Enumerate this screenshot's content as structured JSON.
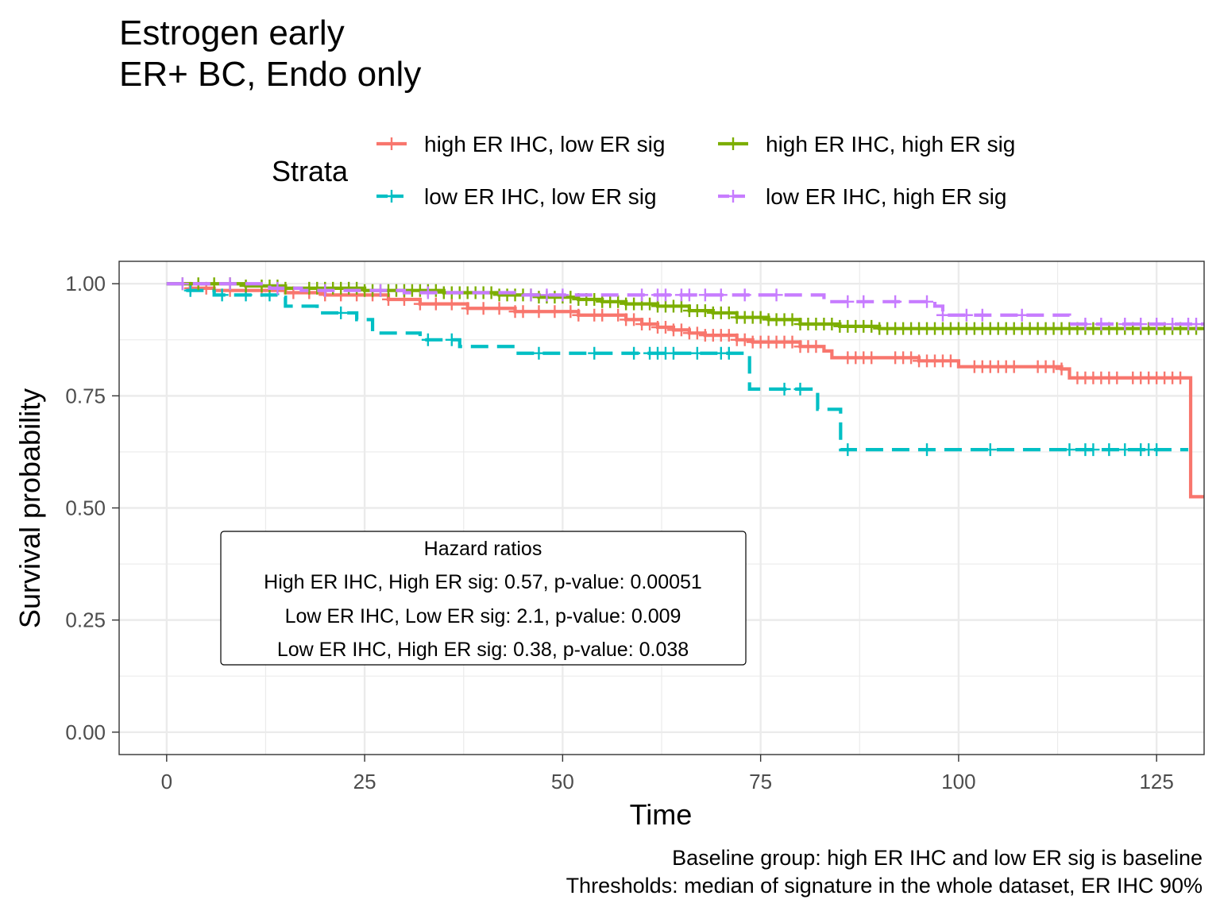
{
  "chart_data": {
    "type": "line",
    "title": "Estrogen early",
    "subtitle": "ER+ BC, Endo only",
    "xlabel": "Time",
    "ylabel": "Survival probability",
    "xlim": [
      -6,
      131
    ],
    "ylim": [
      -0.05,
      1.05
    ],
    "x_ticks": [
      0,
      25,
      50,
      75,
      100,
      125
    ],
    "x_tick_labels": [
      "0",
      "25",
      "50",
      "75",
      "100",
      "125"
    ],
    "y_ticks": [
      0,
      0.25,
      0.5,
      0.75,
      1.0
    ],
    "y_tick_labels": [
      "0.00",
      "0.25",
      "0.50",
      "0.75",
      "1.00"
    ],
    "grid": true,
    "legend": {
      "title": "Strata",
      "placement": "top"
    },
    "caption": [
      "Baseline group: high ER IHC and low ER sig is baseline",
      "Thresholds: median of signature in the whole dataset, ER IHC 90%"
    ],
    "annotation": {
      "title": "Hazard ratios",
      "lines": [
        "High ER IHC, High ER sig: 0.57, p-value: 0.00051",
        "Low ER IHC, Low ER sig: 2.1, p-value: 0.009",
        "Low ER IHC, High ER sig: 0.38, p-value: 0.038"
      ]
    },
    "series": [
      {
        "name": "high ER IHC, low ER sig",
        "color": "#F8766D",
        "dash": "solid",
        "steps": [
          [
            0,
            1.0
          ],
          [
            3,
            0.99
          ],
          [
            6,
            0.985
          ],
          [
            15,
            0.98
          ],
          [
            20,
            0.975
          ],
          [
            28,
            0.965
          ],
          [
            32,
            0.955
          ],
          [
            38,
            0.945
          ],
          [
            44,
            0.938
          ],
          [
            52,
            0.93
          ],
          [
            58,
            0.92
          ],
          [
            60,
            0.91
          ],
          [
            62,
            0.903
          ],
          [
            64,
            0.897
          ],
          [
            66,
            0.89
          ],
          [
            68,
            0.885
          ],
          [
            72,
            0.875
          ],
          [
            74,
            0.87
          ],
          [
            80,
            0.86
          ],
          [
            83,
            0.85
          ],
          [
            84,
            0.835
          ],
          [
            95,
            0.828
          ],
          [
            100,
            0.815
          ],
          [
            113,
            0.81
          ],
          [
            114,
            0.79
          ],
          [
            129,
            0.79
          ],
          [
            129.3,
            0.525
          ],
          [
            131,
            0.525
          ]
        ],
        "censor_x": [
          3,
          5,
          8,
          10,
          12,
          16,
          18,
          20,
          22,
          24,
          26,
          28,
          30,
          32,
          34,
          36,
          38,
          40,
          42,
          44,
          45,
          47,
          49,
          51,
          52,
          54,
          55,
          57,
          58,
          59,
          60,
          61,
          62,
          63,
          64,
          65,
          66,
          67,
          68,
          69,
          70,
          71,
          72,
          73,
          74,
          75,
          76,
          77,
          78,
          79,
          80,
          81,
          82,
          86,
          87,
          88,
          89,
          92,
          93,
          94,
          95,
          96,
          97,
          98,
          99,
          102,
          103,
          104,
          105,
          106,
          107,
          110,
          111,
          112,
          113,
          115,
          116,
          117,
          118,
          119,
          120,
          122,
          123,
          124,
          125,
          126,
          127,
          128
        ]
      },
      {
        "name": "low ER IHC, low ER sig",
        "color": "#00BFC4",
        "dash": "dashed",
        "steps": [
          [
            0,
            1.0
          ],
          [
            2,
            0.985
          ],
          [
            6,
            0.975
          ],
          [
            14,
            0.97
          ],
          [
            15,
            0.95
          ],
          [
            19,
            0.935
          ],
          [
            24,
            0.92
          ],
          [
            26,
            0.89
          ],
          [
            32,
            0.875
          ],
          [
            37,
            0.86
          ],
          [
            44,
            0.845
          ],
          [
            73.5,
            0.845
          ],
          [
            73.6,
            0.765
          ],
          [
            82,
            0.765
          ],
          [
            82.2,
            0.72
          ],
          [
            85,
            0.72
          ],
          [
            85.1,
            0.63
          ],
          [
            129,
            0.63
          ]
        ],
        "censor_x": [
          3,
          7,
          10,
          13,
          22,
          33,
          36,
          47,
          54,
          59,
          61,
          62,
          63,
          64,
          67,
          70,
          71,
          78,
          80,
          86,
          96,
          104,
          114,
          116,
          117,
          119,
          121,
          123,
          124,
          125
        ]
      },
      {
        "name": "high ER IHC, high ER sig",
        "color": "#7CAE00",
        "dash": "solid",
        "steps": [
          [
            0,
            1.0
          ],
          [
            10,
            0.995
          ],
          [
            15,
            0.99
          ],
          [
            25,
            0.985
          ],
          [
            35,
            0.98
          ],
          [
            42,
            0.975
          ],
          [
            47,
            0.97
          ],
          [
            52,
            0.965
          ],
          [
            55,
            0.96
          ],
          [
            58,
            0.955
          ],
          [
            62,
            0.95
          ],
          [
            66,
            0.94
          ],
          [
            69,
            0.935
          ],
          [
            72,
            0.925
          ],
          [
            76,
            0.92
          ],
          [
            80,
            0.91
          ],
          [
            85,
            0.905
          ],
          [
            90,
            0.9
          ],
          [
            131,
            0.9
          ]
        ],
        "censor_x": [
          2,
          4,
          6,
          8,
          10,
          12,
          13,
          14,
          15,
          18,
          19,
          20,
          21,
          22,
          23,
          24,
          25,
          26,
          27,
          28,
          29,
          30,
          31,
          32,
          33,
          34,
          35,
          36,
          37,
          38,
          39,
          40,
          41,
          42,
          43,
          44,
          45,
          46,
          47,
          48,
          49,
          50,
          51,
          52,
          53,
          54,
          55,
          56,
          57,
          58,
          59,
          60,
          61,
          62,
          63,
          64,
          65,
          66,
          67,
          68,
          69,
          70,
          71,
          72,
          73,
          74,
          75,
          76,
          77,
          78,
          79,
          80,
          81,
          82,
          83,
          84,
          85,
          86,
          87,
          88,
          89,
          90,
          91,
          92,
          93,
          94,
          95,
          96,
          97,
          98,
          99,
          100,
          101,
          102,
          103,
          104,
          105,
          106,
          107,
          108,
          109,
          110,
          111,
          112,
          113,
          114,
          115,
          116,
          117,
          118,
          119,
          120,
          121,
          122,
          123,
          124,
          125,
          126,
          127,
          128,
          129,
          130
        ]
      },
      {
        "name": "low ER IHC, high ER sig",
        "color": "#C77CFF",
        "dash": "dashed",
        "steps": [
          [
            0,
            1.0
          ],
          [
            13,
            0.99
          ],
          [
            17,
            0.985
          ],
          [
            30,
            0.98
          ],
          [
            45,
            0.975
          ],
          [
            82,
            0.975
          ],
          [
            83,
            0.96
          ],
          [
            97,
            0.95
          ],
          [
            98,
            0.93
          ],
          [
            113,
            0.93
          ],
          [
            114,
            0.91
          ],
          [
            131,
            0.91
          ]
        ],
        "censor_x": [
          2,
          8,
          14,
          20,
          27,
          33,
          46,
          48,
          50,
          60,
          62,
          63,
          65,
          66,
          68,
          70,
          73,
          77,
          86,
          88,
          92,
          96,
          98,
          101,
          103,
          108,
          116,
          118,
          121,
          123,
          125,
          127,
          129,
          130
        ]
      }
    ]
  }
}
